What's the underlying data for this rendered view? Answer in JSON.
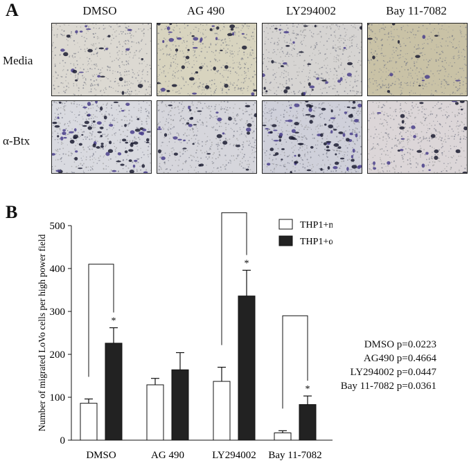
{
  "panels": {
    "a_label": "A",
    "b_label": "B"
  },
  "micrographs": {
    "columns": [
      "DMSO",
      "AG 490",
      "LY294002",
      "Bay 11-7082"
    ],
    "rows": [
      "Media",
      "α-Btx"
    ],
    "tints": [
      [
        "#dcd9d2",
        "#d8d4bf",
        "#d6d4d2",
        "#c9c2a6"
      ],
      [
        "#d9dae0",
        "#d6d6dc",
        "#cfd0da",
        "#dcd6d8"
      ]
    ],
    "cell_density": [
      [
        0.25,
        0.45,
        0.35,
        0.15
      ],
      [
        0.85,
        0.4,
        0.95,
        0.3
      ]
    ]
  },
  "chart_data": {
    "type": "bar",
    "categories": [
      "DMSO",
      "AG 490",
      "LY294002",
      "Bay 11-7082"
    ],
    "series": [
      {
        "name": "THP1+media",
        "values": [
          86,
          129,
          137,
          17
        ],
        "errors": [
          10,
          15,
          33,
          5
        ],
        "color": "#ffffff"
      },
      {
        "name": "THP1+α-Btx",
        "values": [
          226,
          164,
          336,
          83
        ],
        "errors": [
          36,
          40,
          60,
          20
        ],
        "color": "#222222"
      }
    ],
    "ylabel": "Number of migrated LoVo cells per high power field",
    "xlabel": "",
    "ylim": [
      0,
      500
    ],
    "yticks": [
      "0",
      "100",
      "200",
      "300",
      "400",
      "500"
    ],
    "significance": [
      {
        "category": "DMSO",
        "bracket_top": 410,
        "marker": "*"
      },
      {
        "category": "LY294002",
        "bracket_top": 530,
        "marker": "*"
      },
      {
        "category": "Bay 11-7082",
        "bracket_top": 290,
        "marker": "*"
      }
    ],
    "legend_position": "top-right"
  },
  "pvalues": [
    "DMSO  p=0.0223",
    "AG490  p=0.4664",
    "LY294002 p=0.0447",
    "Bay 11-7082 p=0.0361"
  ]
}
